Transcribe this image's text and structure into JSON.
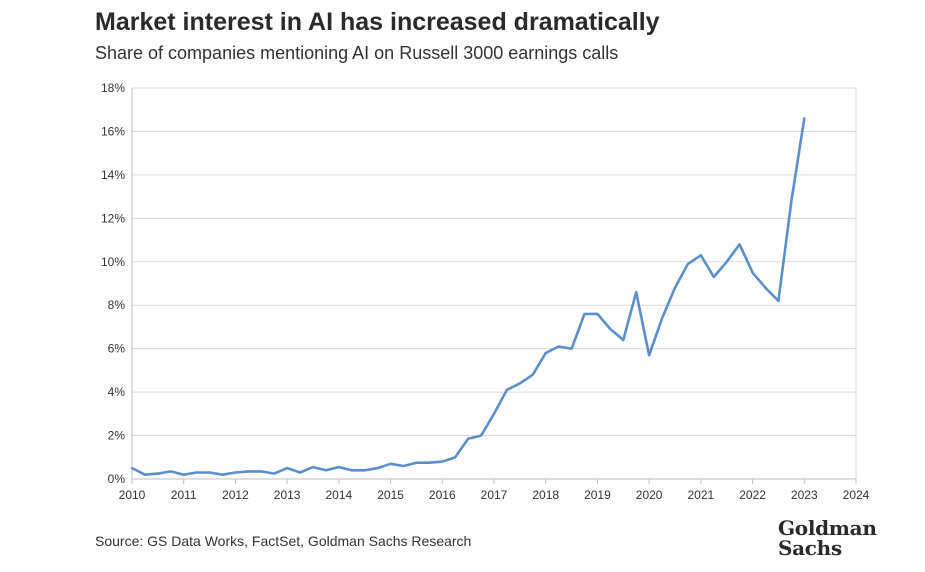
{
  "chart_data": {
    "type": "line",
    "title": "Market interest in AI has increased dramatically",
    "subtitle": "Share of companies mentioning AI on Russell 3000 earnings calls",
    "xlabel": "",
    "ylabel": "",
    "xlim": [
      2010,
      2024
    ],
    "ylim": [
      0,
      18
    ],
    "x_ticks": [
      2010,
      2011,
      2012,
      2013,
      2014,
      2015,
      2016,
      2017,
      2018,
      2019,
      2020,
      2021,
      2022,
      2023,
      2024
    ],
    "x_tick_labels": [
      "2010",
      "2011",
      "2012",
      "2013",
      "2014",
      "2015",
      "2016",
      "2017",
      "2018",
      "2019",
      "2020",
      "2021",
      "2022",
      "2023",
      "2024"
    ],
    "y_ticks": [
      0,
      2,
      4,
      6,
      8,
      10,
      12,
      14,
      16,
      18
    ],
    "y_tick_labels": [
      "0%",
      "2%",
      "4%",
      "6%",
      "8%",
      "10%",
      "12%",
      "14%",
      "16%",
      "18%"
    ],
    "grid": true,
    "series": [
      {
        "color": "#5b8fcc",
        "x": [
          2010.0,
          2010.25,
          2010.5,
          2010.75,
          2011.0,
          2011.25,
          2011.5,
          2011.75,
          2012.0,
          2012.25,
          2012.5,
          2012.75,
          2013.0,
          2013.25,
          2013.5,
          2013.75,
          2014.0,
          2014.25,
          2014.5,
          2014.75,
          2015.0,
          2015.25,
          2015.5,
          2015.75,
          2016.0,
          2016.25,
          2016.5,
          2016.75,
          2017.0,
          2017.25,
          2017.5,
          2017.75,
          2018.0,
          2018.25,
          2018.5,
          2018.75,
          2019.0,
          2019.25,
          2019.5,
          2019.75,
          2020.0,
          2020.25,
          2020.5,
          2020.75,
          2021.0,
          2021.25,
          2021.5,
          2021.75,
          2022.0,
          2022.25,
          2022.5,
          2022.75,
          2023.0
        ],
        "values": [
          0.5,
          0.2,
          0.25,
          0.35,
          0.2,
          0.3,
          0.3,
          0.2,
          0.3,
          0.35,
          0.35,
          0.25,
          0.5,
          0.3,
          0.55,
          0.4,
          0.55,
          0.4,
          0.4,
          0.5,
          0.7,
          0.6,
          0.75,
          0.75,
          0.8,
          1.0,
          1.85,
          2.0,
          3.0,
          4.1,
          4.4,
          4.8,
          5.8,
          6.1,
          6.0,
          7.6,
          7.6,
          6.9,
          6.4,
          8.6,
          5.7,
          7.4,
          8.8,
          9.9,
          10.3,
          9.3,
          10.0,
          10.8,
          9.5,
          8.8,
          8.2,
          12.8,
          16.6
        ]
      }
    ]
  },
  "footer": {
    "source": "Source: GS Data Works, FactSet, Goldman Sachs Research",
    "logo_line1": "Goldman",
    "logo_line2": "Sachs"
  }
}
